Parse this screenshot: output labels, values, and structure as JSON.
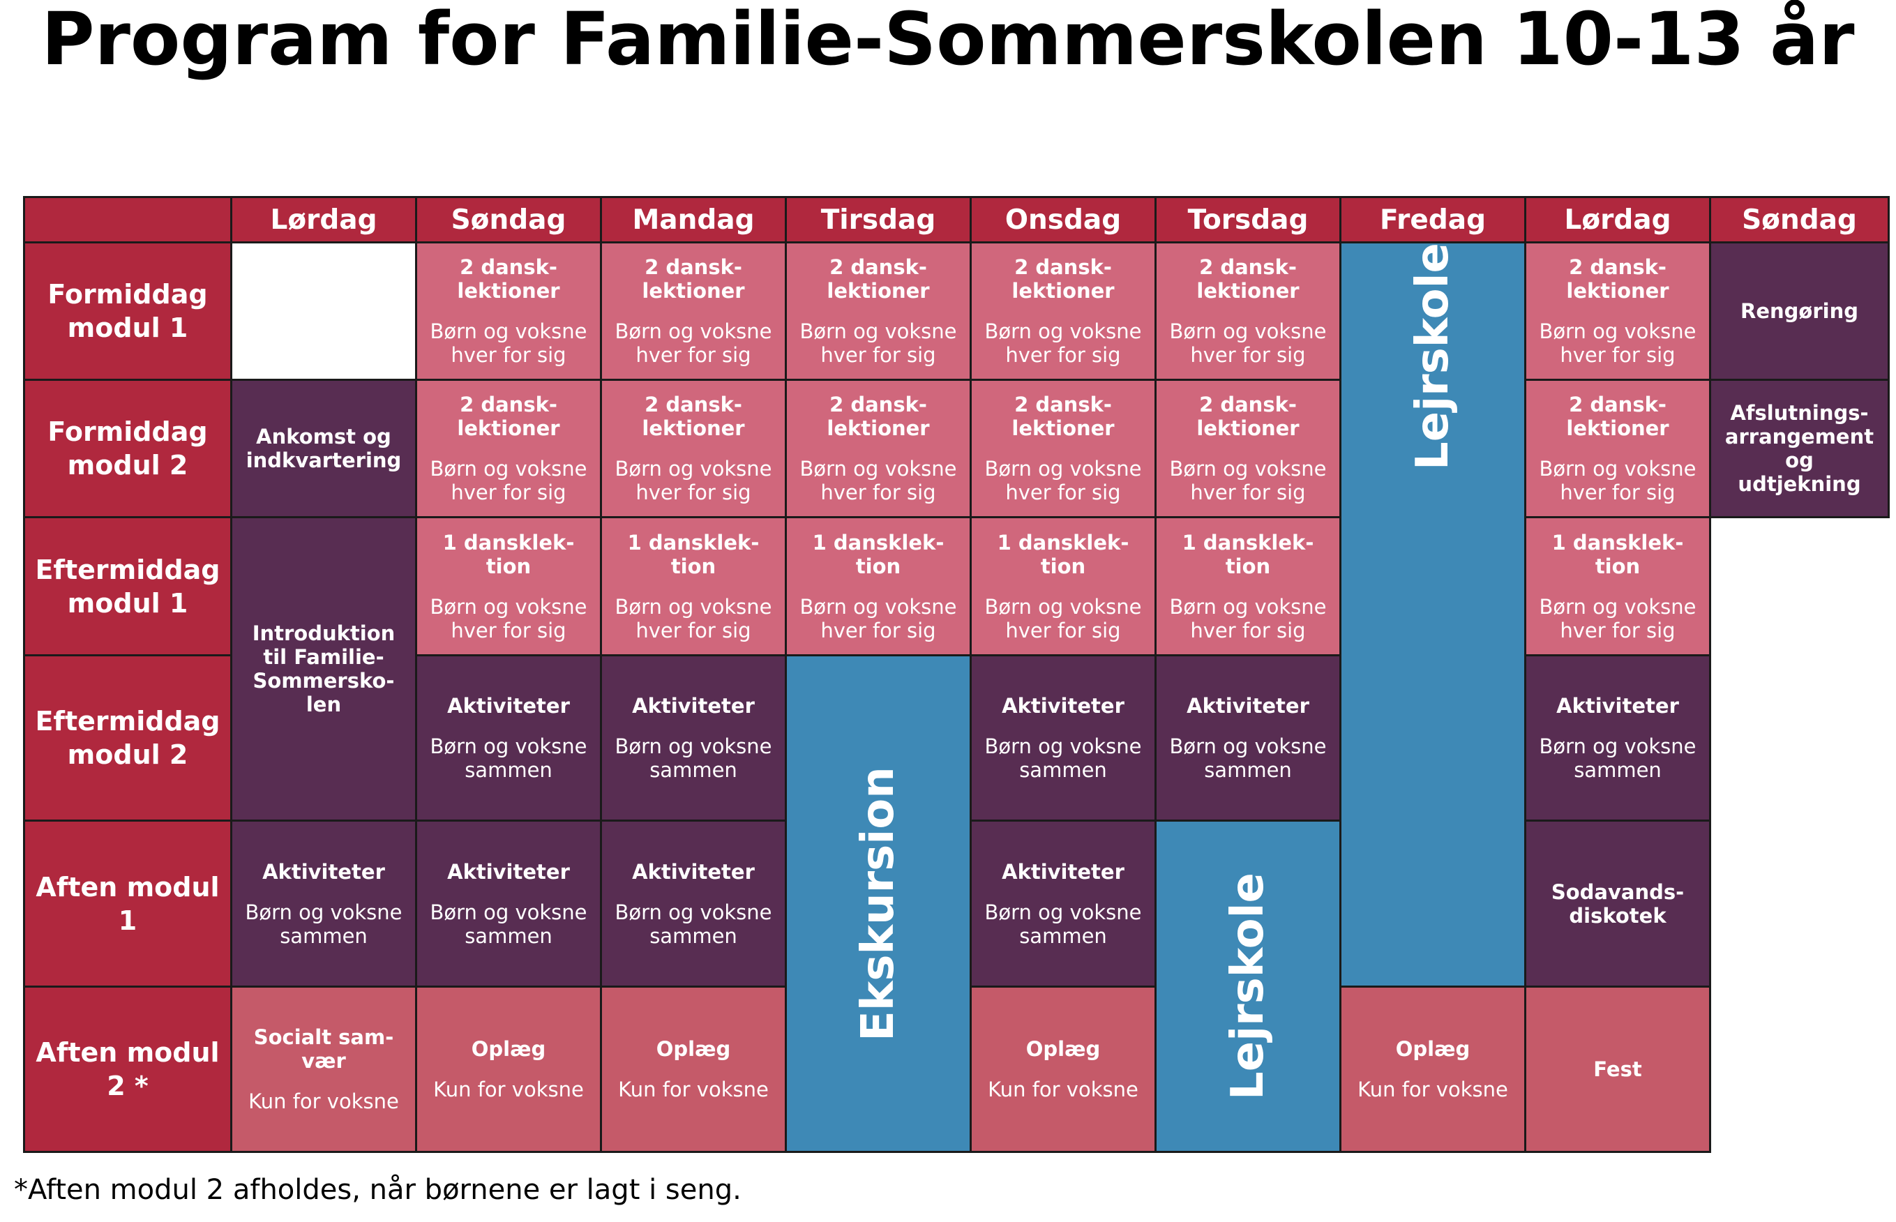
{
  "title": "Program for Familie-Sommerskolen 10-13 år",
  "colors": {
    "header": "#b0283e",
    "lesson": "#d0677c",
    "activity": "#582d52",
    "adult": "#c55a69",
    "excursion": "#3e89b6"
  },
  "days": [
    "Lørdag",
    "Søndag",
    "Mandag",
    "Tirsdag",
    "Onsdag",
    "Torsdag",
    "Fredag",
    "Lørdag",
    "Søndag"
  ],
  "rows": [
    "Formiddag modul 1",
    "Formiddag modul 2",
    "Eftermiddag modul 1",
    "Eftermiddag modul 2",
    "Aften modul 1",
    "Aften modul 2 *"
  ],
  "text": {
    "lesson2": "2 dansk-lektioner",
    "lesson1": "1 dansklek-tion",
    "separate": "Børn og voksne hver for sig",
    "activities": "Aktiviteter",
    "together": "Børn og voksne sammen",
    "talk": "Oplæg",
    "adults_only": "Kun for voksne",
    "arrival": "Ankomst og indkvartering",
    "intro": "Introduktion til Familie-Sommersko-len",
    "social": "Socialt sam-vær",
    "cleaning": "Rengøring",
    "closing": "Afslutnings-arrangement og udtjekning",
    "disco": "Sodavands-diskotek",
    "party": "Fest",
    "excursion": "Ekskursion",
    "camp": "Lejrskole"
  },
  "footnote": "*Aften modul 2 afholdes, når børnene er lagt i seng."
}
